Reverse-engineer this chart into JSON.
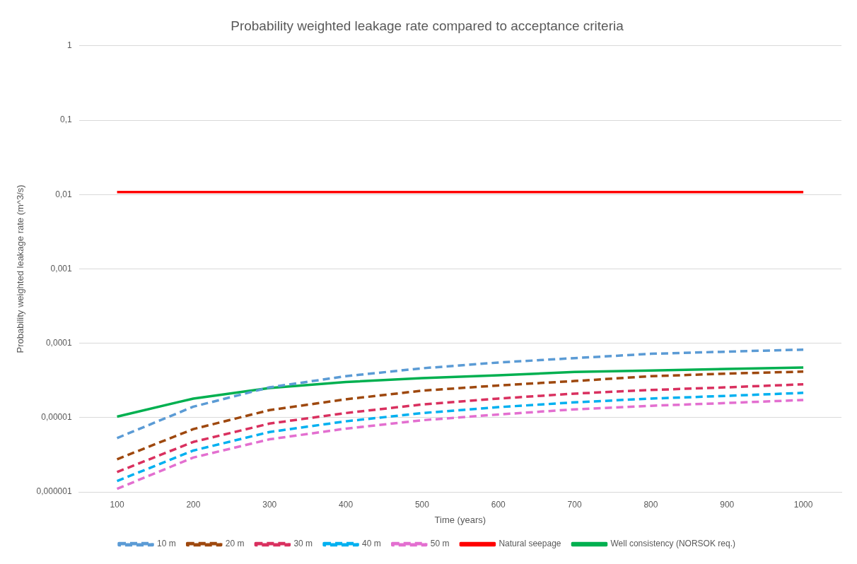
{
  "chart_data": {
    "type": "line",
    "title": "Probability weighted leakage rate compared to acceptance criteria",
    "xlabel": "Time (years)",
    "ylabel": "Probability weighted leakage rate (m^3/s)",
    "categories": [
      "100",
      "200",
      "300",
      "400",
      "500",
      "600",
      "700",
      "800",
      "900",
      "1000"
    ],
    "series": [
      {
        "name": "10 m",
        "color": "#5b9bd5",
        "line_style": "dashed",
        "values": [
          5.3e-06,
          1.4e-05,
          2.55e-05,
          3.6e-05,
          4.6e-05,
          5.5e-05,
          6.3e-05,
          7.2e-05,
          7.7e-05,
          8.2e-05
        ]
      },
      {
        "name": "20 m",
        "color": "#9e480e",
        "line_style": "dashed",
        "values": [
          2.75e-06,
          7e-06,
          1.26e-05,
          1.76e-05,
          2.3e-05,
          2.7e-05,
          3.1e-05,
          3.6e-05,
          3.9e-05,
          4.15e-05
        ]
      },
      {
        "name": "30 m",
        "color": "#d9305f",
        "line_style": "dashed",
        "values": [
          1.85e-06,
          4.7e-06,
          8.3e-06,
          1.15e-05,
          1.5e-05,
          1.8e-05,
          2.1e-05,
          2.35e-05,
          2.55e-05,
          2.8e-05
        ]
      },
      {
        "name": "40 m",
        "color": "#00b0f0",
        "line_style": "dashed",
        "values": [
          1.4e-06,
          3.6e-06,
          6.4e-06,
          8.9e-06,
          1.15e-05,
          1.38e-05,
          1.6e-05,
          1.8e-05,
          1.96e-05,
          2.15e-05
        ]
      },
      {
        "name": "50 m",
        "color": "#e36fd0",
        "line_style": "dashed",
        "values": [
          1.1e-06,
          2.9e-06,
          5.1e-06,
          7.1e-06,
          9.2e-06,
          1.1e-05,
          1.29e-05,
          1.44e-05,
          1.57e-05,
          1.72e-05
        ]
      },
      {
        "name": "Natural seepage",
        "color": "#ff0000",
        "line_style": "solid",
        "values": [
          0.0108,
          0.0108,
          0.0108,
          0.0108,
          0.0108,
          0.0108,
          0.0108,
          0.0108,
          0.0108,
          0.0108
        ]
      },
      {
        "name": "Well consistency (NORSOK req.)",
        "color": "#00b050",
        "line_style": "solid",
        "values": [
          1.03e-05,
          1.8e-05,
          2.5e-05,
          3e-05,
          3.4e-05,
          3.7e-05,
          4.1e-05,
          4.3e-05,
          4.5e-05,
          4.7e-05
        ]
      }
    ],
    "log": "y",
    "ylim": [
      1e-06,
      1
    ],
    "yticks": [
      {
        "value": 1e-06,
        "label": "0,000001"
      },
      {
        "value": 1e-05,
        "label": "0,00001"
      },
      {
        "value": 0.0001,
        "label": "0,0001"
      },
      {
        "value": 0.001,
        "label": "0,001"
      },
      {
        "value": 0.01,
        "label": "0,01"
      },
      {
        "value": 0.1,
        "label": "0,1"
      },
      1
    ],
    "grid": "y",
    "legend": "bottom",
    "marker": "none"
  }
}
